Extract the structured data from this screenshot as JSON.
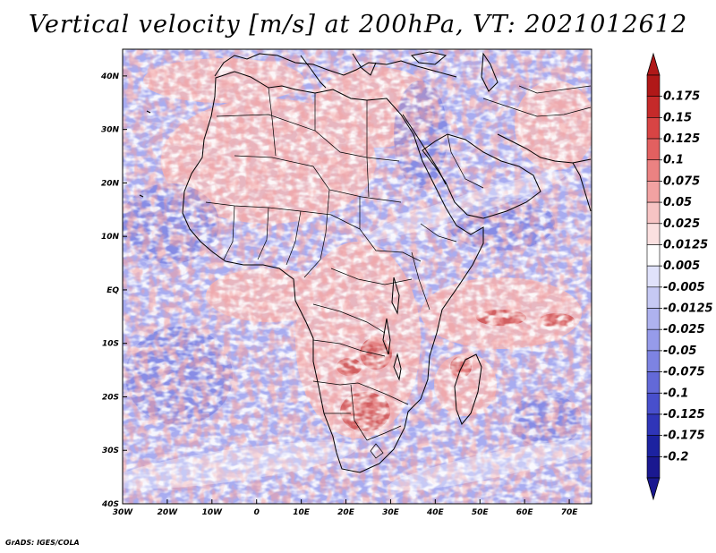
{
  "title": "Vertical velocity [m/s] at 200hPa, VT: 2021012612",
  "credit": "GrADS: IGES/COLA",
  "map": {
    "x_ticks": [
      "30W",
      "20W",
      "10W",
      "0",
      "10E",
      "20E",
      "30E",
      "40E",
      "50E",
      "60E",
      "70E"
    ],
    "y_ticks": [
      "40N",
      "30N",
      "20N",
      "10N",
      "EQ",
      "10S",
      "20S",
      "30S",
      "40S"
    ],
    "lon_range": [
      -30,
      75
    ],
    "lat_range": [
      -40,
      45
    ],
    "colors": {
      "blue_base": "#a8acf0",
      "red_base": "#f2b8b8",
      "coast": "#000000"
    }
  },
  "colorbar": {
    "labels": [
      "0.175",
      "0.15",
      "0.125",
      "0.1",
      "0.075",
      "0.05",
      "0.025",
      "0.0125",
      "0.005",
      "-0.005",
      "-0.0125",
      "-0.025",
      "-0.05",
      "-0.075",
      "-0.1",
      "-0.125",
      "-0.175",
      "-0.2"
    ],
    "colors": [
      "#b01818",
      "#c52a2a",
      "#d84444",
      "#e26060",
      "#eb8282",
      "#f2a2a2",
      "#f7c4c4",
      "#fbe0e0",
      "#ffffff",
      "#e0e2fb",
      "#c6c9f4",
      "#aeb2ef",
      "#969bea",
      "#7d83e2",
      "#6369d8",
      "#484fcc",
      "#2f35b8",
      "#1c22a0",
      "#1a1890"
    ]
  }
}
